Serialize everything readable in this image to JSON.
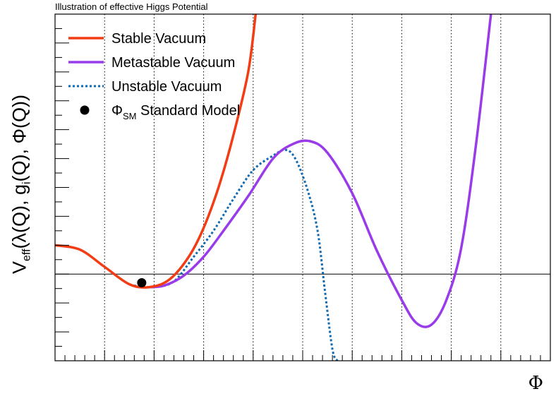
{
  "chart_data": {
    "type": "line",
    "title": "Illustration of effective Higgs Potential",
    "xlabel": "Φ",
    "ylabel": {
      "v": "V",
      "eff": "eff",
      "mid": "(λ(Q), g",
      "i": "i",
      "tail": "(Q), Φ(Q))"
    },
    "xlim": [
      0,
      10
    ],
    "ylim": [
      -3,
      9
    ],
    "grid_x": true,
    "grid_x_values": [
      1,
      2,
      3,
      4,
      5,
      6,
      7,
      8,
      9
    ],
    "zero_line": true,
    "legend_position": "top-left",
    "series": [
      {
        "name": "Stable Vacuum",
        "color": "#f23c14",
        "style": "solid",
        "points": [
          [
            0,
            1.0
          ],
          [
            0.5,
            0.85
          ],
          [
            1.0,
            0.25
          ],
          [
            1.5,
            -0.35
          ],
          [
            1.9,
            -0.45
          ],
          [
            2.3,
            -0.2
          ],
          [
            2.7,
            0.6
          ],
          [
            3.0,
            1.6
          ],
          [
            3.3,
            3.0
          ],
          [
            3.6,
            4.8
          ],
          [
            3.9,
            7.0
          ],
          [
            4.05,
            9.0
          ]
        ]
      },
      {
        "name": "Metastable Vacuum",
        "color": "#9a3bea",
        "style": "solid",
        "points": [
          [
            1.9,
            -0.45
          ],
          [
            2.2,
            -0.4
          ],
          [
            2.6,
            -0.05
          ],
          [
            3.0,
            0.6
          ],
          [
            3.4,
            1.5
          ],
          [
            3.9,
            2.7
          ],
          [
            4.4,
            4.0
          ],
          [
            4.8,
            4.5
          ],
          [
            5.15,
            4.6
          ],
          [
            5.5,
            4.2
          ],
          [
            6.0,
            2.8
          ],
          [
            6.5,
            0.8
          ],
          [
            7.0,
            -0.9
          ],
          [
            7.3,
            -1.7
          ],
          [
            7.6,
            -1.75
          ],
          [
            7.9,
            -0.9
          ],
          [
            8.2,
            0.9
          ],
          [
            8.5,
            4.5
          ],
          [
            8.8,
            9.0
          ]
        ]
      },
      {
        "name": "Unstable Vacuum",
        "color": "#0f6ab4",
        "style": "dotted",
        "points": [
          [
            1.6,
            -0.4
          ],
          [
            2.0,
            -0.45
          ],
          [
            2.4,
            -0.25
          ],
          [
            2.8,
            0.6
          ],
          [
            3.2,
            1.5
          ],
          [
            3.6,
            2.6
          ],
          [
            4.0,
            3.6
          ],
          [
            4.4,
            4.1
          ],
          [
            4.65,
            4.3
          ],
          [
            4.85,
            4.0
          ],
          [
            5.1,
            2.9
          ],
          [
            5.3,
            1.5
          ],
          [
            5.45,
            -0.6
          ],
          [
            5.6,
            -2.6
          ],
          [
            5.7,
            -3.0
          ]
        ]
      }
    ],
    "markers": [
      {
        "name": "Φ",
        "subscript": "SM",
        "suffix": " Standard Model",
        "x": 1.75,
        "y": -0.3,
        "color": "#000000"
      }
    ]
  }
}
